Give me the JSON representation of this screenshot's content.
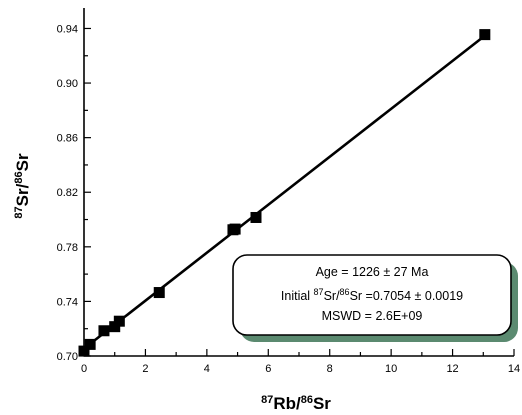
{
  "chart_data": {
    "type": "scatter",
    "title": "",
    "xlabel": {
      "sup1": "87",
      "base1": "Rb/",
      "sup2": "86",
      "base2": "Sr"
    },
    "ylabel": {
      "sup1": "87",
      "base1": "Sr/",
      "sup2": "86",
      "base2": "Sr"
    },
    "xlim": [
      0,
      14
    ],
    "ylim": [
      0.7,
      0.955
    ],
    "xticks": [
      0,
      2,
      4,
      6,
      8,
      10,
      12,
      14
    ],
    "yticks": [
      0.7,
      0.74,
      0.78,
      0.82,
      0.86,
      0.9,
      0.94
    ],
    "ytick_labels": [
      "0.70",
      "0.74",
      "0.78",
      "0.82",
      "0.86",
      "0.90",
      "0.94"
    ],
    "grid": false,
    "points": [
      {
        "x": 0.0,
        "y": 0.7036
      },
      {
        "x": 0.2,
        "y": 0.7085
      },
      {
        "x": 0.65,
        "y": 0.7185
      },
      {
        "x": 1.0,
        "y": 0.7215
      },
      {
        "x": 1.15,
        "y": 0.7255
      },
      {
        "x": 2.45,
        "y": 0.7465
      },
      {
        "x": 4.85,
        "y": 0.7925
      },
      {
        "x": 4.92,
        "y": 0.793
      },
      {
        "x": 5.6,
        "y": 0.8015
      },
      {
        "x": 13.05,
        "y": 0.9355
      }
    ],
    "fit_line": {
      "x": [
        0,
        13.1
      ],
      "y": [
        0.7054,
        0.9356
      ]
    },
    "annotation": {
      "line1": "Age = 1226 ± 27 Ma",
      "line2_prefix": "Initial ",
      "line2_sup1": "87",
      "line2_mid": "Sr/",
      "line2_sup2": "86",
      "line2_suffix": "Sr =0.7054 ± 0.0019",
      "line3": "MSWD = 2.6E+09",
      "shadow_color": "#5b8a70"
    }
  }
}
